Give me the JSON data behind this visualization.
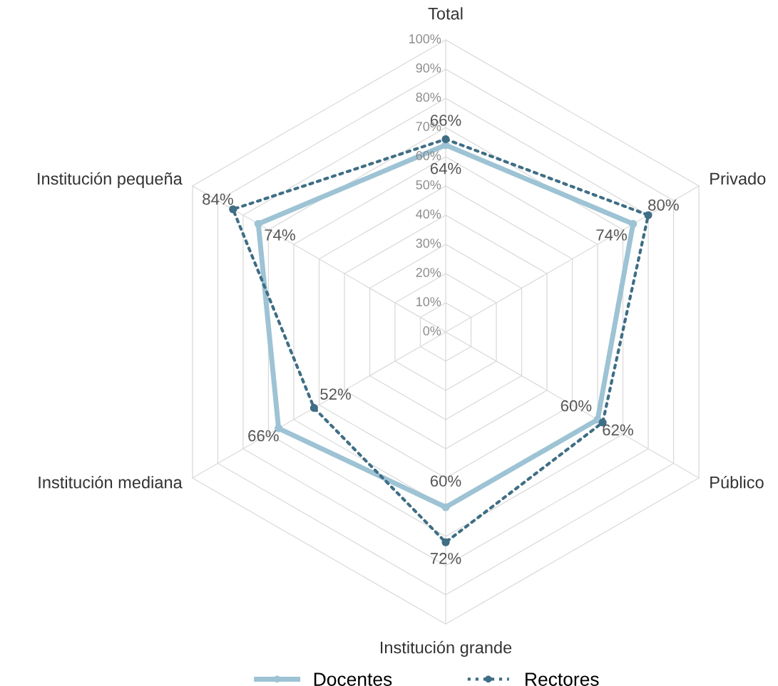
{
  "chart_data": {
    "type": "radar",
    "categories": [
      "Total",
      "Privado",
      "Público",
      "Institución grande",
      "Institución mediana",
      "Institución pequeña"
    ],
    "series": [
      {
        "name": "Docentes",
        "color": "#9dc3d4",
        "values": [
          64,
          74,
          60,
          60,
          66,
          74
        ],
        "value_labels": [
          "64%",
          "74%",
          "60%",
          "60%",
          "66%",
          "74%"
        ],
        "line_style": "solid"
      },
      {
        "name": "Rectores",
        "color": "#3f6e85",
        "values": [
          66,
          80,
          62,
          72,
          52,
          84
        ],
        "value_labels": [
          "66%",
          "80%",
          "62%",
          "72%",
          "52%",
          "84%"
        ],
        "line_style": "dotted"
      }
    ],
    "ylim": [
      0,
      100
    ],
    "yticks": [
      {
        "value": 0,
        "label": "0%"
      },
      {
        "value": 10,
        "label": "10%"
      },
      {
        "value": 20,
        "label": "20%"
      },
      {
        "value": 30,
        "label": "30%"
      },
      {
        "value": 40,
        "label": "40%"
      },
      {
        "value": 50,
        "label": "50%"
      },
      {
        "value": 60,
        "label": "60%"
      },
      {
        "value": 70,
        "label": "70%"
      },
      {
        "value": 80,
        "label": "80%"
      },
      {
        "value": 90,
        "label": "90%"
      },
      {
        "value": 100,
        "label": "100%"
      }
    ],
    "marker": "circle",
    "grid": true,
    "legend": "bottom"
  }
}
